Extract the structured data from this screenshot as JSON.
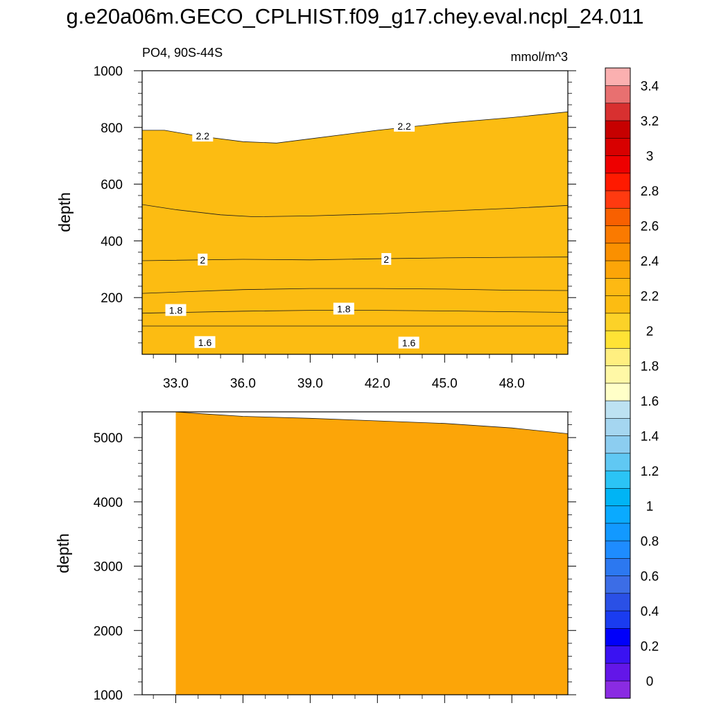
{
  "title": "g.e20a06m.GECO_CPLHIST.f09_g17.chey.eval.ncpl_24.011",
  "chart_data": [
    {
      "type": "contour",
      "panel": "upper",
      "left_label": "PO4, 90S-44S",
      "right_label": "mmol/m^3",
      "xlabel": "",
      "ylabel": "depth",
      "xlim": [
        31.5,
        50.5
      ],
      "ylim": [
        1000,
        0
      ],
      "x_ticks": [
        33.0,
        36.0,
        39.0,
        42.0,
        45.0,
        48.0
      ],
      "x_tick_labels": [
        "33.0",
        "36.0",
        "39.0",
        "42.0",
        "45.0",
        "48.0"
      ],
      "y_ticks": [
        200,
        400,
        600,
        800,
        1000
      ],
      "y_tick_labels": [
        "200",
        "400",
        "600",
        "800",
        "1000"
      ],
      "fill_bands": [
        {
          "lower_level": 1.5,
          "color": "#bde2f2",
          "boundary": [
            [
              31.5,
              40
            ],
            [
              32.5,
              38
            ],
            [
              33.5,
              30
            ],
            [
              36,
              42
            ],
            [
              39,
              50
            ],
            [
              42,
              45
            ],
            [
              45,
              40
            ],
            [
              48,
              38
            ],
            [
              50.5,
              36
            ]
          ]
        },
        {
          "lower_level": 1.6,
          "color": "#ffffc8",
          "boundary": [
            [
              31.5,
              100
            ],
            [
              50.5,
              100
            ]
          ]
        },
        {
          "lower_level": 1.7,
          "color": "#fff8a6",
          "boundary": [
            [
              31.5,
              145
            ],
            [
              36,
              152
            ],
            [
              39,
              155
            ],
            [
              42,
              155
            ],
            [
              45,
              153
            ],
            [
              48,
              150
            ],
            [
              50.5,
              148
            ]
          ]
        },
        {
          "lower_level": 1.8,
          "color": "#ffef80",
          "boundary": [
            [
              31.5,
              215
            ],
            [
              36,
              228
            ],
            [
              39,
              232
            ],
            [
              42,
              232
            ],
            [
              45,
              230
            ],
            [
              48,
              226
            ],
            [
              50.5,
              225
            ]
          ]
        },
        {
          "lower_level": 1.9,
          "color": "#ffe335",
          "boundary": [
            [
              31.5,
              330
            ],
            [
              36,
              335
            ],
            [
              39,
              333
            ],
            [
              42,
              337
            ],
            [
              45,
              340
            ],
            [
              48,
              342
            ],
            [
              50.5,
              343
            ]
          ]
        },
        {
          "lower_level": 2.0,
          "color": "#fcd228",
          "boundary": [
            [
              31.5,
              528
            ],
            [
              33,
              510
            ],
            [
              35,
              492
            ],
            [
              36.5,
              485
            ],
            [
              39,
              488
            ],
            [
              42,
              495
            ],
            [
              45,
              505
            ],
            [
              48,
              515
            ],
            [
              50.5,
              525
            ]
          ]
        },
        {
          "lower_level": 2.1,
          "color": "#fcbc12",
          "boundary": [
            [
              31.5,
              790
            ],
            [
              32.5,
              790
            ],
            [
              34,
              770
            ],
            [
              36,
              750
            ],
            [
              37.5,
              745
            ],
            [
              39,
              760
            ],
            [
              42,
              790
            ],
            [
              45,
              815
            ],
            [
              48,
              835
            ],
            [
              50.5,
              855
            ]
          ]
        }
      ],
      "contour_labels": [
        {
          "text": "1.6",
          "x": 34.3,
          "y": 42
        },
        {
          "text": "1.6",
          "x": 43.4,
          "y": 40
        },
        {
          "text": "1.8",
          "x": 33.0,
          "y": 155
        },
        {
          "text": "1.8",
          "x": 40.5,
          "y": 160
        },
        {
          "text": "2",
          "x": 34.2,
          "y": 333
        },
        {
          "text": "2",
          "x": 42.4,
          "y": 335
        },
        {
          "text": "2.2",
          "x": 34.2,
          "y": 770
        },
        {
          "text": "2.2",
          "x": 43.2,
          "y": 805
        }
      ]
    },
    {
      "type": "contour",
      "panel": "lower",
      "xlabel": "",
      "ylabel": "depth",
      "xlim": [
        31.5,
        50.5
      ],
      "ylim": [
        5400,
        1000
      ],
      "y_ticks": [
        1000,
        2000,
        3000,
        4000,
        5000
      ],
      "y_tick_labels": [
        "1000",
        "2000",
        "3000",
        "4000",
        "5000"
      ],
      "fill_bands": [
        {
          "lower_level": 2.2,
          "color": "#fdb913",
          "boundary": [
            [
              31.5,
              1000
            ],
            [
              50.5,
              1000
            ]
          ]
        },
        {
          "lower_level": 2.3,
          "color": "#fca508",
          "boundary": [
            [
              33,
              5400
            ],
            [
              34.2,
              5370
            ],
            [
              36,
              5330
            ],
            [
              39,
              5300
            ],
            [
              42,
              5260
            ],
            [
              45,
              5220
            ],
            [
              48,
              5150
            ],
            [
              50.5,
              5060
            ]
          ]
        }
      ]
    }
  ],
  "colorbar": {
    "colors": [
      "#8a2be2",
      "#6316e8",
      "#3a12f2",
      "#0000fa",
      "#1a3cf0",
      "#2a50e6",
      "#3c6de6",
      "#2c78f0",
      "#1e8cff",
      "#1299ff",
      "#0aaaff",
      "#00b4f5",
      "#2bc4f5",
      "#60c8f3",
      "#8ccdf0",
      "#a5d6f0",
      "#bde2f2",
      "#ffffc8",
      "#fff8a6",
      "#ffef80",
      "#ffe335",
      "#fcd228",
      "#fcbc12",
      "#fdb913",
      "#fca508",
      "#fa9000",
      "#fa7a00",
      "#f86000",
      "#ff3a10",
      "#ff1a00",
      "#ee0000",
      "#d80000",
      "#c60000",
      "#d83030",
      "#e87070",
      "#fbb0b0"
    ],
    "tick_labels": [
      "0",
      "0.2",
      "0.4",
      "0.6",
      "0.8",
      "1",
      "1.2",
      "1.4",
      "1.6",
      "1.8",
      "2",
      "2.2",
      "2.4",
      "2.6",
      "2.8",
      "3",
      "3.2",
      "3.4"
    ]
  }
}
